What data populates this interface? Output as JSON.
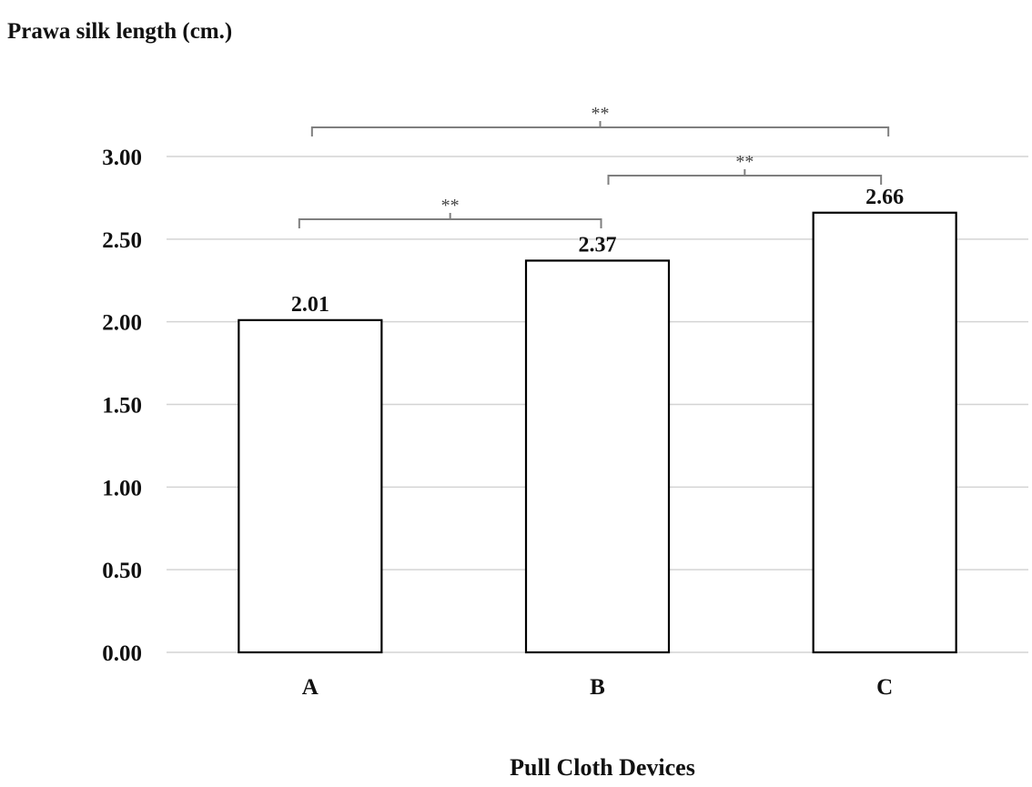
{
  "chart_data": {
    "type": "bar",
    "ylabel": "Prawa silk length (cm.)",
    "xlabel": "Pull Cloth Devices",
    "categories": [
      "A",
      "B",
      "C"
    ],
    "values": [
      2.01,
      2.37,
      2.66
    ],
    "value_labels": [
      "2.01",
      "2.37",
      "2.66"
    ],
    "ylim": [
      0,
      3.0
    ],
    "yticks": [
      0,
      0.5,
      1.0,
      1.5,
      2.0,
      2.5,
      3.0
    ],
    "ytick_labels": [
      "0.00",
      "0.50",
      "1.00",
      "1.50",
      "2.00",
      "2.50",
      "3.00"
    ],
    "grid": true,
    "bar_fill": "#ffffff",
    "bar_stroke": "#000000",
    "significance": [
      {
        "from": "A",
        "to": "B",
        "label": "**"
      },
      {
        "from": "B",
        "to": "C",
        "label": "**"
      },
      {
        "from": "A",
        "to": "C",
        "label": "**"
      }
    ]
  }
}
